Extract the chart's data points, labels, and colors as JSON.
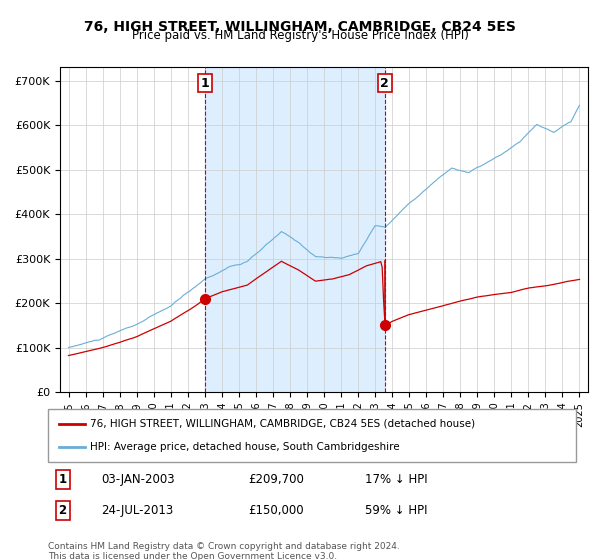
{
  "title": "76, HIGH STREET, WILLINGHAM, CAMBRIDGE, CB24 5ES",
  "subtitle": "Price paid vs. HM Land Registry's House Price Index (HPI)",
  "legend_line1": "76, HIGH STREET, WILLINGHAM, CAMBRIDGE, CB24 5ES (detached house)",
  "legend_line2": "HPI: Average price, detached house, South Cambridgeshire",
  "annotation1_label": "1",
  "annotation1_date": "03-JAN-2003",
  "annotation1_price": "£209,700",
  "annotation1_hpi": "17% ↓ HPI",
  "annotation2_label": "2",
  "annotation2_date": "24-JUL-2013",
  "annotation2_price": "£150,000",
  "annotation2_hpi": "59% ↓ HPI",
  "footnote": "Contains HM Land Registry data © Crown copyright and database right 2024.\nThis data is licensed under the Open Government Licence v3.0.",
  "hpi_color": "#6aaed6",
  "price_color": "#cc0000",
  "point_color": "#cc0000",
  "vline_color": "#cc0000",
  "shade_color": "#ddeeff",
  "background_color": "#ffffff",
  "grid_color": "#cccccc",
  "ylim": [
    0,
    730000
  ],
  "yticks": [
    0,
    100000,
    200000,
    300000,
    400000,
    500000,
    600000,
    700000
  ],
  "ylabel_fmt": "£{0}K",
  "sale1_year": 2003.01,
  "sale1_price": 209700,
  "sale2_year": 2013.56,
  "sale2_price": 150000,
  "sale2_prev_price": 295000
}
